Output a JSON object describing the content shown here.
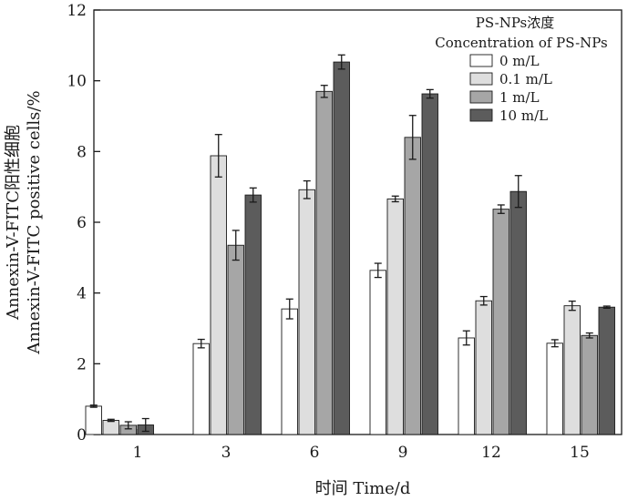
{
  "chart_data": {
    "type": "bar",
    "title": "",
    "xlabel": "时间 Time/d",
    "ylabel_line1": "Annexin-V-FITC阳性细胞",
    "ylabel_line2": "Annexin-V-FITC positive cells/%",
    "ylim": [
      0,
      12
    ],
    "yticks": [
      0,
      2,
      4,
      6,
      8,
      10,
      12
    ],
    "categories": [
      "1",
      "3",
      "6",
      "9",
      "12",
      "15"
    ],
    "legend": {
      "title_line1": "PS-NPs浓度",
      "title_line2": "Concentration of PS-NPs",
      "position": "top-right"
    },
    "series": [
      {
        "name": "0 m/L",
        "color": "#ffffff",
        "values": [
          0.8,
          2.57,
          3.55,
          4.64,
          2.73,
          2.58
        ],
        "errors": [
          0.03,
          0.12,
          0.28,
          0.2,
          0.2,
          0.1
        ]
      },
      {
        "name": "0.1 m/L",
        "color": "#dedede",
        "values": [
          0.4,
          7.88,
          6.92,
          6.66,
          3.78,
          3.64
        ],
        "errors": [
          0.03,
          0.6,
          0.25,
          0.08,
          0.12,
          0.13
        ]
      },
      {
        "name": "1 m/L",
        "color": "#a6a6a6",
        "values": [
          0.26,
          5.35,
          9.7,
          8.4,
          6.37,
          2.8
        ],
        "errors": [
          0.1,
          0.42,
          0.17,
          0.62,
          0.12,
          0.07
        ]
      },
      {
        "name": "10 m/L",
        "color": "#5c5c5c",
        "values": [
          0.27,
          6.77,
          10.53,
          9.63,
          6.87,
          3.6
        ],
        "errors": [
          0.18,
          0.2,
          0.2,
          0.12,
          0.45,
          0.03
        ]
      }
    ]
  }
}
